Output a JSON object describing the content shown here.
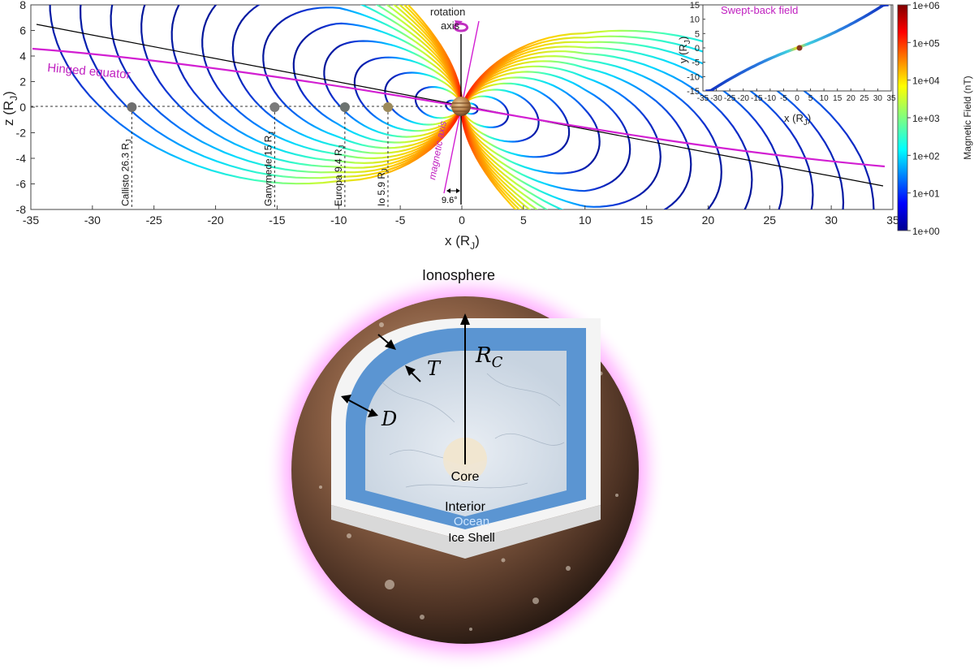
{
  "main_plot": {
    "xlabel": "x (R",
    "xlabel_sub": "J",
    "ylabel": "z (R",
    "ylabel_sub": "J",
    "xticks": [
      "-35",
      "-30",
      "-25",
      "-20",
      "-15",
      "-10",
      "-5",
      "0",
      "5",
      "10",
      "15",
      "20",
      "25",
      "30",
      "35"
    ],
    "yticks": [
      "8",
      "6",
      "4",
      "2",
      "0",
      "-2",
      "-4",
      "-6",
      "-8"
    ],
    "xlim": [
      -35,
      35
    ],
    "ylim": [
      -8,
      8
    ],
    "rotation_axis_label_1": "rotation",
    "rotation_axis_label_2": "axis",
    "magnetic_axis_label": "magnetic axis",
    "hinged_equator_label": "Hinged equator",
    "tilt_label": "9.6°",
    "moons": [
      {
        "name": "Callisto 26.3 R",
        "x": -26.8,
        "color": "#6f6f6f"
      },
      {
        "name": "Ganymede 15 R",
        "x": -15.2,
        "color": "#7a7a7a"
      },
      {
        "name": "Europa 9.4 R",
        "x": -9.5,
        "color": "#6c7370"
      },
      {
        "name": "Io 5.9 R",
        "x": -6.0,
        "color": "#9c8a5a"
      }
    ],
    "moon_sub": "J"
  },
  "inset": {
    "title": "Swept-back field",
    "xlabel": "x (R",
    "xlabel_sub": "J",
    "ylabel": "y (R",
    "ylabel_sub": "J",
    "xticks": [
      "-35",
      "-30",
      "-25",
      "-20",
      "-15",
      "-10",
      "-5",
      "0",
      "5",
      "10",
      "15",
      "20",
      "25",
      "30",
      "35"
    ],
    "yticks": [
      "15",
      "10",
      "5",
      "0",
      "-5",
      "-10",
      "-15"
    ],
    "xlim": [
      -35,
      35
    ],
    "ylim": [
      -15,
      15
    ]
  },
  "colorbar": {
    "label": "Magnetic Field (nT)",
    "ticks": [
      "1e+06",
      "1e+05",
      "1e+04",
      "1e+03",
      "1e+02",
      "1e+01",
      "1e+00"
    ]
  },
  "interior": {
    "ionosphere": "Ionosphere",
    "rc": "R",
    "rc_sub": "C",
    "t": "T",
    "d": "D",
    "core": "Core",
    "interior": "Interior",
    "ocean": "Ocean",
    "ice_shell": "Ice Shell"
  },
  "colors": {
    "hinged_equator": "#d21fd2",
    "ocean": "#5b95d2",
    "ice": "#f2f2f2",
    "magenta_glow": "#ff8cff"
  }
}
